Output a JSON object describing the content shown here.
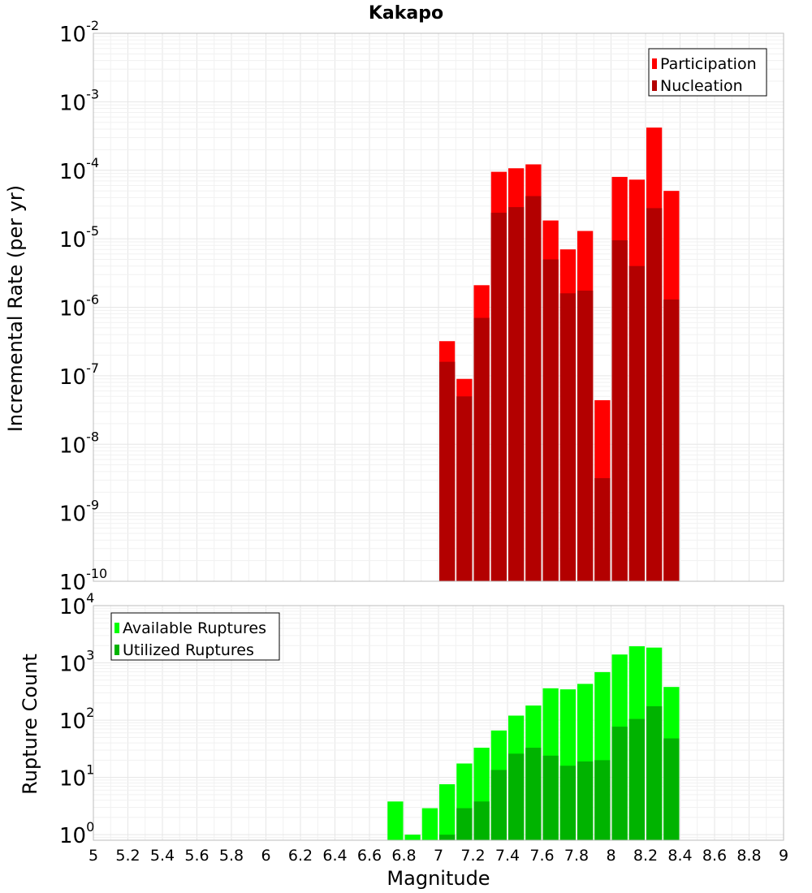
{
  "chart_data": [
    {
      "type": "bar",
      "title": "Kakapo",
      "ylabel": "Incremental Rate (per yr)",
      "xlabel": "",
      "yscale": "log",
      "ylim": [
        1e-10,
        0.01
      ],
      "xlim": [
        5,
        9
      ],
      "grid": true,
      "legend_position": "top-right",
      "x": [
        7.05,
        7.15,
        7.25,
        7.35,
        7.45,
        7.55,
        7.65,
        7.75,
        7.85,
        7.95,
        8.05,
        8.15,
        8.25,
        8.35
      ],
      "series": [
        {
          "name": "Participation",
          "color": "#ff0000",
          "values": [
            3.2e-07,
            9e-08,
            2.1e-06,
            9.5e-05,
            0.000107,
            0.000122,
            1.85e-05,
            7e-06,
            1.3e-05,
            4.4e-08,
            8e-05,
            7.3e-05,
            0.00042,
            5e-05
          ]
        },
        {
          "name": "Nucleation",
          "color": "#b30000",
          "values": [
            1.6e-07,
            5e-08,
            7e-07,
            2.4e-05,
            2.9e-05,
            4.2e-05,
            5e-06,
            1.6e-06,
            1.75e-06,
            3.2e-09,
            9.5e-06,
            4e-06,
            2.8e-05,
            1.3e-06
          ]
        }
      ]
    },
    {
      "type": "bar",
      "title": "",
      "ylabel": "Rupture Count",
      "xlabel": "Magnitude",
      "yscale": "log",
      "ylim": [
        0.8,
        10000
      ],
      "xlim": [
        5,
        9
      ],
      "grid": true,
      "legend_position": "top-left",
      "x": [
        6.75,
        6.85,
        6.95,
        7.05,
        7.15,
        7.25,
        7.35,
        7.45,
        7.55,
        7.65,
        7.75,
        7.85,
        7.95,
        8.05,
        8.15,
        8.25,
        8.35
      ],
      "series": [
        {
          "name": "Available Ruptures",
          "color": "#00ff00",
          "values": [
            3.8,
            1.0,
            2.9,
            7.6,
            17.5,
            33,
            66,
            120,
            180,
            360,
            345,
            430,
            690,
            1400,
            1950,
            1850,
            380
          ]
        },
        {
          "name": "Utilized Ruptures",
          "color": "#00b300",
          "values": [
            0,
            0,
            0,
            1.0,
            2.9,
            3.8,
            13.5,
            26,
            33,
            24,
            16,
            19,
            20,
            77,
            105,
            175,
            48
          ]
        }
      ]
    }
  ],
  "axes": {
    "x_ticks": [
      "5",
      "5.2",
      "5.4",
      "5.6",
      "5.8",
      "6",
      "6.2",
      "6.4",
      "6.6",
      "6.8",
      "7",
      "7.2",
      "7.4",
      "7.6",
      "7.8",
      "8",
      "8.2",
      "8.4",
      "8.6",
      "8.8",
      "9"
    ],
    "top_y_ticks": [
      {
        "base": "10",
        "exp": "-10"
      },
      {
        "base": "10",
        "exp": "-9"
      },
      {
        "base": "10",
        "exp": "-8"
      },
      {
        "base": "10",
        "exp": "-7"
      },
      {
        "base": "10",
        "exp": "-6"
      },
      {
        "base": "10",
        "exp": "-5"
      },
      {
        "base": "10",
        "exp": "-4"
      },
      {
        "base": "10",
        "exp": "-3"
      },
      {
        "base": "10",
        "exp": "-2"
      }
    ],
    "bottom_y_ticks": [
      {
        "base": "10",
        "exp": "0"
      },
      {
        "base": "10",
        "exp": "1"
      },
      {
        "base": "10",
        "exp": "2"
      },
      {
        "base": "10",
        "exp": "3"
      },
      {
        "base": "10",
        "exp": "4"
      }
    ]
  }
}
